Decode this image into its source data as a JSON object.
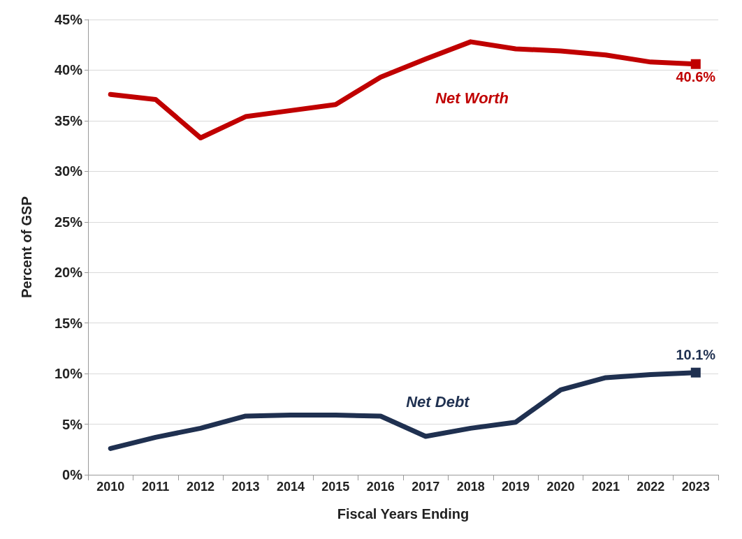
{
  "chart_data": {
    "type": "line",
    "xlabel": "Fiscal Years Ending",
    "ylabel": "Percent of GSP",
    "categories": [
      "2010",
      "2011",
      "2012",
      "2013",
      "2014",
      "2015",
      "2016",
      "2017",
      "2018",
      "2019",
      "2020",
      "2021",
      "2022",
      "2023"
    ],
    "series": [
      {
        "name": "Net Worth",
        "color": "#c00000",
        "values": [
          37.6,
          37.1,
          33.3,
          35.4,
          36.0,
          36.6,
          39.3,
          41.1,
          42.8,
          42.1,
          41.9,
          41.5,
          40.8,
          40.6
        ],
        "value_labels": [
          null,
          null,
          null,
          null,
          null,
          null,
          null,
          null,
          null,
          null,
          null,
          null,
          null,
          "40.6%"
        ]
      },
      {
        "name": "Net Debt",
        "color": "#1f3050",
        "values": [
          2.6,
          3.7,
          4.6,
          5.8,
          5.9,
          5.9,
          5.8,
          3.8,
          4.6,
          5.2,
          8.4,
          9.6,
          9.9,
          10.1
        ],
        "value_labels": [
          null,
          null,
          null,
          null,
          null,
          null,
          null,
          null,
          null,
          null,
          null,
          null,
          null,
          "10.1%"
        ]
      }
    ],
    "ylim": [
      0,
      45
    ],
    "yticks": [
      {
        "value": 0,
        "label": "0%"
      },
      {
        "value": 5,
        "label": "5%"
      },
      {
        "value": 10,
        "label": "10%"
      },
      {
        "value": 15,
        "label": "15%"
      },
      {
        "value": 20,
        "label": "20%"
      },
      {
        "value": 25,
        "label": "25%"
      },
      {
        "value": 30,
        "label": "30%"
      },
      {
        "value": 35,
        "label": "35%"
      },
      {
        "value": 40,
        "label": "40%"
      },
      {
        "value": 45,
        "label": "45%"
      }
    ],
    "grid": "y",
    "legend": false,
    "marker": "none",
    "line_style": "solid"
  }
}
